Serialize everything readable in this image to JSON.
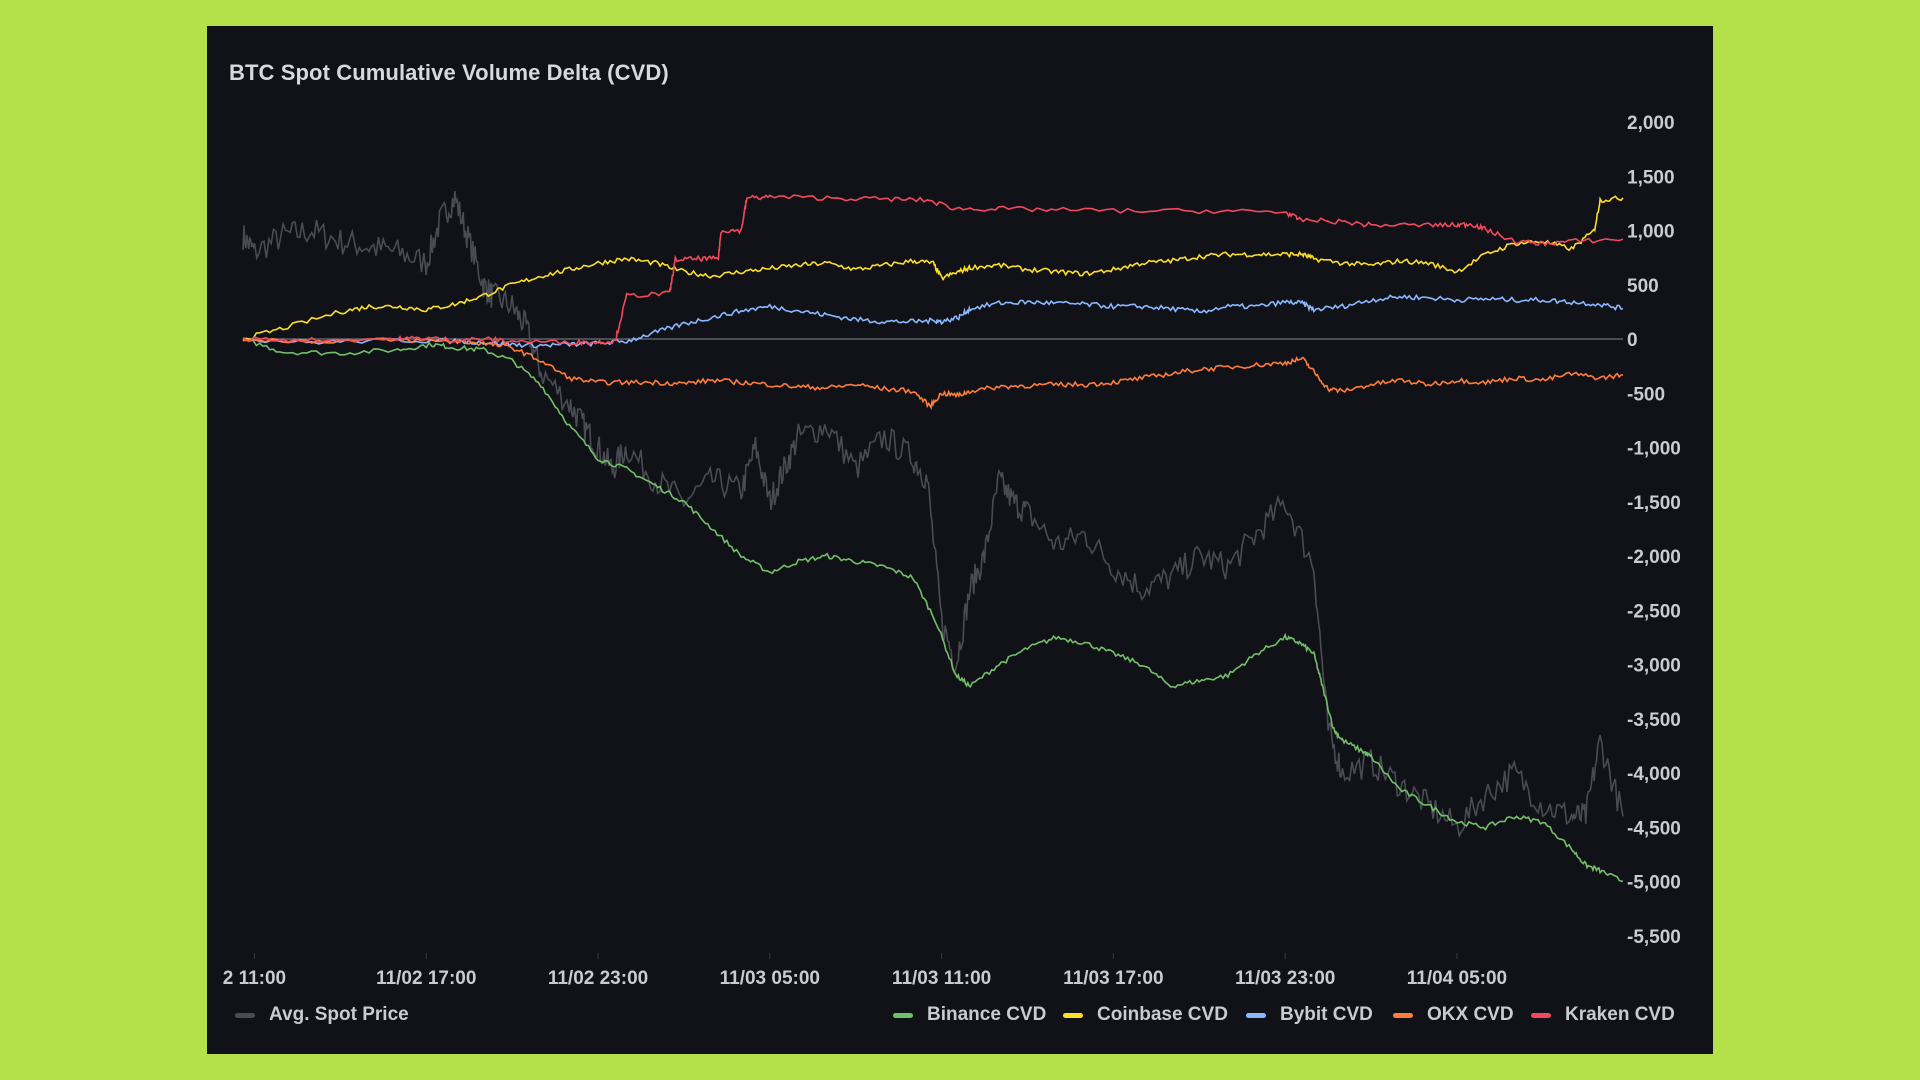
{
  "chart_data": {
    "type": "line",
    "title": "BTC Spot Cumulative Volume Delta (CVD)",
    "y_ticks": [
      "2,000",
      "1,500",
      "1,000",
      "500",
      "0",
      "-500",
      "-1,000",
      "-1,500",
      "-2,000",
      "-2,500",
      "-3,000",
      "-3,500",
      "-4,000",
      "-4,500",
      "-5,000",
      "-5,500"
    ],
    "ylim": [
      -5600,
      2100
    ],
    "x_ticks": [
      "2 11:00",
      "11/02 17:00",
      "11/02 23:00",
      "11/03 05:00",
      "11/03 11:00",
      "11/03 17:00",
      "11/03 23:00",
      "11/04 05:00"
    ],
    "x_tick_hours": [
      11,
      17,
      23,
      29,
      35,
      41,
      47,
      53
    ],
    "xlim": [
      10.6,
      58.8
    ],
    "grid": false,
    "legend_position": "bottom",
    "series": [
      {
        "name": "Binance CVD",
        "color": "#73bf69",
        "x": [
          10.6,
          12,
          14,
          16,
          17.2,
          18,
          19,
          20,
          21,
          22,
          23,
          24,
          25,
          26,
          27,
          28,
          29,
          30,
          31,
          32,
          33,
          34,
          34.8,
          35.5,
          36,
          37,
          38,
          39,
          40,
          41,
          42,
          43,
          44,
          45,
          46,
          47,
          47.5,
          48,
          48.3,
          48.7,
          49,
          49.7,
          50,
          51,
          52,
          53,
          54,
          55,
          56,
          57,
          57.5,
          58,
          58.8
        ],
        "values": [
          0,
          -120,
          -130,
          -100,
          -50,
          -80,
          -100,
          -200,
          -420,
          -800,
          -1100,
          -1200,
          -1350,
          -1500,
          -1750,
          -2000,
          -2150,
          -2050,
          -2000,
          -2050,
          -2100,
          -2200,
          -2600,
          -3100,
          -3200,
          -3000,
          -2850,
          -2750,
          -2800,
          -2900,
          -3000,
          -3200,
          -3150,
          -3100,
          -2900,
          -2750,
          -2800,
          -2900,
          -3200,
          -3600,
          -3700,
          -3800,
          -3850,
          -4150,
          -4300,
          -4450,
          -4500,
          -4400,
          -4450,
          -4700,
          -4850,
          -4900,
          -5000
        ]
      },
      {
        "name": "Coinbase CVD",
        "color": "#fade2a",
        "x": [
          10.6,
          12,
          14,
          15,
          16,
          17,
          18,
          19,
          20,
          21,
          22,
          23,
          24,
          25,
          26,
          27,
          28,
          29,
          30,
          31,
          32,
          33,
          34,
          34.7,
          35,
          35.6,
          36,
          37,
          38,
          39,
          40,
          41,
          42,
          43,
          44,
          45,
          46,
          47,
          47.6,
          48,
          49,
          50,
          51,
          52,
          53,
          54,
          55,
          56,
          57,
          57.8,
          58,
          58.8
        ],
        "values": [
          0,
          100,
          250,
          300,
          300,
          270,
          320,
          400,
          500,
          580,
          640,
          700,
          740,
          700,
          620,
          580,
          620,
          650,
          680,
          700,
          640,
          680,
          720,
          700,
          560,
          620,
          660,
          680,
          640,
          620,
          600,
          640,
          700,
          720,
          760,
          780,
          780,
          780,
          780,
          740,
          700,
          680,
          720,
          700,
          620,
          780,
          880,
          900,
          830,
          1000,
          1280,
          1300
        ]
      },
      {
        "name": "Bybit CVD",
        "color": "#8ab8ff",
        "x": [
          10.6,
          13,
          16,
          18,
          19,
          20,
          21,
          22,
          23,
          24,
          25,
          26,
          27,
          28,
          29,
          30,
          31,
          32,
          33,
          34,
          34.8,
          35,
          35.6,
          36,
          37,
          38,
          39,
          40,
          41,
          42,
          43,
          44,
          45,
          46,
          47,
          47.6,
          48,
          49,
          50,
          51,
          52,
          53,
          54,
          55,
          56,
          57,
          58,
          58.8
        ],
        "values": [
          0,
          -30,
          -10,
          -20,
          -30,
          -50,
          -60,
          -50,
          -40,
          -20,
          60,
          140,
          200,
          260,
          300,
          260,
          220,
          180,
          160,
          160,
          170,
          160,
          200,
          280,
          330,
          340,
          330,
          320,
          300,
          300,
          280,
          250,
          300,
          300,
          340,
          330,
          270,
          300,
          360,
          390,
          380,
          360,
          370,
          360,
          360,
          340,
          320,
          280
        ]
      },
      {
        "name": "OKX CVD",
        "color": "#ff7c3a",
        "x": [
          10.6,
          13,
          16,
          18,
          19,
          20,
          21,
          22,
          23,
          24,
          25,
          26,
          27,
          28,
          29,
          30,
          31,
          32,
          33,
          34,
          34.6,
          35,
          35.6,
          36,
          37,
          38,
          39,
          40,
          41,
          42,
          43,
          44,
          45,
          46,
          47,
          47.6,
          48,
          48.5,
          49,
          50,
          51,
          52,
          53,
          54,
          55,
          56,
          57,
          58,
          58.8
        ],
        "values": [
          0,
          -20,
          -10,
          -20,
          -40,
          -80,
          -200,
          -360,
          -400,
          -400,
          -400,
          -410,
          -380,
          -400,
          -420,
          -440,
          -450,
          -420,
          -460,
          -480,
          -620,
          -500,
          -520,
          -480,
          -440,
          -430,
          -420,
          -420,
          -400,
          -360,
          -320,
          -280,
          -260,
          -240,
          -220,
          -180,
          -300,
          -460,
          -480,
          -420,
          -380,
          -420,
          -380,
          -400,
          -360,
          -380,
          -320,
          -360,
          -330
        ]
      },
      {
        "name": "Kraken CVD",
        "color": "#f2495c",
        "x": [
          10.6,
          13,
          16,
          17,
          18,
          19,
          20,
          22,
          23,
          23.6,
          24,
          25.5,
          25.7,
          26.5,
          27.2,
          27.3,
          28,
          28.2,
          29,
          31,
          33,
          34.5,
          35.5,
          37,
          39,
          42,
          45,
          47,
          47.5,
          49,
          50,
          52,
          53,
          53.5,
          54,
          55,
          56,
          57,
          58.8
        ],
        "values": [
          0,
          -10,
          0,
          10,
          -10,
          0,
          -20,
          -30,
          -30,
          -20,
          400,
          420,
          730,
          740,
          740,
          1000,
          1000,
          1300,
          1310,
          1300,
          1290,
          1280,
          1200,
          1200,
          1190,
          1180,
          1180,
          1170,
          1100,
          1080,
          1050,
          1050,
          1050,
          1060,
          1010,
          900,
          880,
          900,
          920
        ]
      }
    ],
    "price_overlay": {
      "name": "Avg. Spot Price",
      "color": "#4a4c53",
      "note_ylim": [
        -5600,
        2100
      ],
      "x": [
        10.6,
        11,
        12,
        13,
        14,
        15,
        16,
        17,
        17.5,
        18,
        18.5,
        19,
        19.3,
        20,
        20.5,
        21,
        22,
        22.5,
        23,
        23.5,
        24,
        25,
        26,
        27,
        28,
        28.5,
        29,
        29.5,
        30,
        31,
        32,
        33,
        34,
        34.5,
        35,
        35.5,
        36,
        36.5,
        37,
        37.5,
        38,
        39,
        40,
        41,
        42,
        43,
        44,
        45,
        46,
        47,
        48,
        48.5,
        49,
        50,
        51,
        52,
        53,
        54,
        55,
        56,
        57,
        57.5,
        58,
        58.8
      ],
      "values": [
        950,
        800,
        950,
        1000,
        900,
        850,
        800,
        700,
        1100,
        1300,
        900,
        500,
        400,
        300,
        100,
        -300,
        -600,
        -800,
        -1000,
        -1200,
        -1000,
        -1300,
        -1500,
        -1300,
        -1400,
        -1000,
        -1500,
        -1200,
        -900,
        -800,
        -1200,
        -900,
        -1100,
        -1300,
        -2600,
        -3000,
        -2300,
        -2000,
        -1300,
        -1500,
        -1600,
        -1900,
        -1800,
        -2100,
        -2300,
        -2200,
        -2000,
        -2100,
        -1800,
        -1500,
        -2100,
        -3600,
        -4000,
        -3900,
        -4100,
        -4300,
        -4500,
        -4200,
        -4000,
        -4300,
        -4400,
        -4400,
        -3700,
        -4400
      ]
    }
  },
  "legend": {
    "price": "Avg. Spot Price",
    "binance": "Binance CVD",
    "coinbase": "Coinbase CVD",
    "bybit": "Bybit CVD",
    "okx": "OKX CVD",
    "kraken": "Kraken CVD"
  },
  "colors": {
    "background": "#b4e04a",
    "panel": "#111217",
    "zero_line": "#4b4d55",
    "text": "#c9cbd1"
  }
}
